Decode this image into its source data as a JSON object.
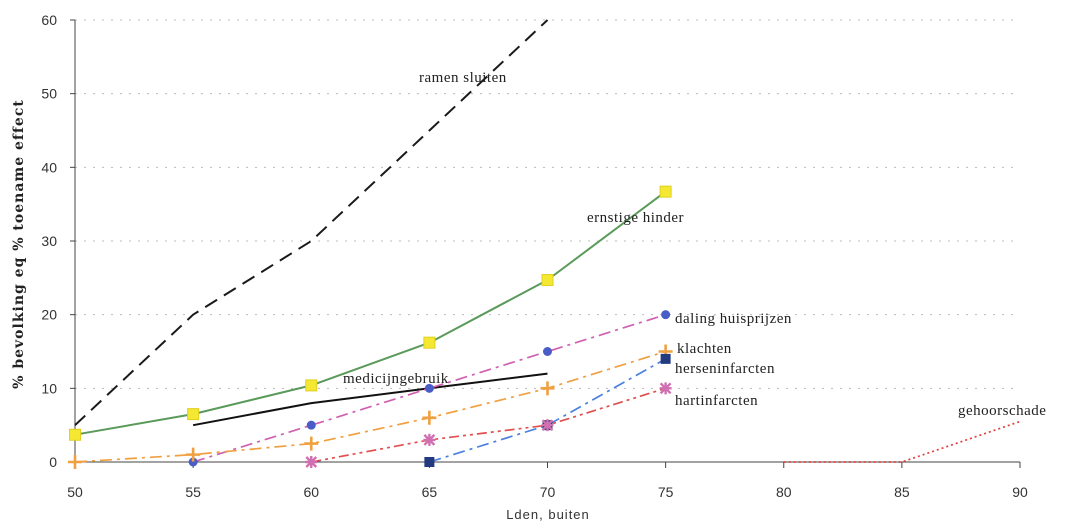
{
  "chart_data": {
    "type": "line",
    "xlabel": "Lden, buiten",
    "ylabel": "% bevolking eq % toename effect",
    "xlim": [
      50,
      90
    ],
    "ylim": [
      0,
      60
    ],
    "x_ticks": [
      50,
      55,
      60,
      65,
      70,
      75,
      80,
      85,
      90
    ],
    "y_ticks": [
      0,
      10,
      20,
      30,
      40,
      50,
      60
    ],
    "grid": "horizontal dotted",
    "series": [
      {
        "name": "ramen sluiten",
        "color": "#1a1a1a",
        "dash": "long-dash",
        "marker": "none",
        "x": [
          50,
          55,
          60,
          65,
          70
        ],
        "y": [
          5,
          20,
          30,
          45,
          60
        ]
      },
      {
        "name": "ernstige hinder",
        "color": "#5a9a5a",
        "dash": "solid",
        "marker": "yellow-square",
        "x": [
          50,
          55,
          60,
          65,
          70,
          75
        ],
        "y": [
          3.7,
          6.5,
          10.4,
          16.2,
          24.7,
          36.7
        ]
      },
      {
        "name": "medicijngebruik",
        "color": "#111111",
        "dash": "solid",
        "marker": "none",
        "x": [
          55,
          60,
          65,
          70
        ],
        "y": [
          5,
          8,
          10,
          12
        ]
      },
      {
        "name": "daling huisprijzen",
        "color": "#d060b0",
        "dash": "dash-dot",
        "marker": "blue-circle",
        "x": [
          55,
          60,
          65,
          70,
          75
        ],
        "y": [
          0,
          5,
          10,
          15,
          20
        ]
      },
      {
        "name": "klachten",
        "color": "#f0a040",
        "dash": "dash-dot",
        "marker": "orange-plus",
        "x": [
          50,
          55,
          60,
          65,
          70,
          75
        ],
        "y": [
          0,
          1,
          2.5,
          6,
          10,
          15
        ]
      },
      {
        "name": "herseninfarcten",
        "color": "#4a80e0",
        "dash": "dash-dot",
        "marker": "navy-square",
        "x": [
          65,
          70,
          75
        ],
        "y": [
          0,
          5,
          14
        ]
      },
      {
        "name": "hartinfarcten",
        "color": "#e05050",
        "dash": "dash-dot-dot",
        "marker": "pink-star",
        "x": [
          60,
          65,
          70,
          75
        ],
        "y": [
          0,
          3,
          5,
          10
        ]
      },
      {
        "name": "gehoorschade",
        "color": "#e04040",
        "dash": "dotted",
        "marker": "none",
        "x": [
          80,
          85,
          90
        ],
        "y": [
          0,
          0,
          5.5
        ]
      }
    ]
  }
}
